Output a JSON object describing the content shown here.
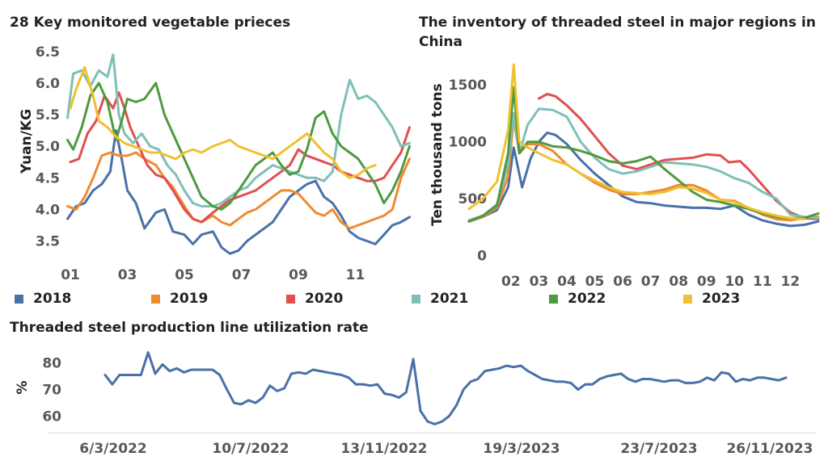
{
  "chart_data": [
    {
      "type": "line",
      "title": "28 Key monitored vegetable prieces",
      "ylabel": "Yuan/KG",
      "xlabel": "",
      "xticks": [
        "01",
        "03",
        "05",
        "07",
        "09",
        "11"
      ],
      "yticks": [
        3.5,
        4.0,
        4.5,
        5.0,
        5.5,
        6.0,
        6.5
      ],
      "ylim": [
        3.2,
        6.6
      ],
      "xlim": [
        0.8,
        13.0
      ],
      "series": [
        {
          "name": "2018",
          "color": "#4a70a8",
          "x": [
            0.9,
            1.2,
            1.5,
            1.8,
            2.1,
            2.4,
            2.6,
            2.8,
            3.0,
            3.3,
            3.6,
            4.0,
            4.3,
            4.6,
            5.0,
            5.3,
            5.6,
            6.0,
            6.3,
            6.6,
            6.9,
            7.2,
            7.5,
            7.8,
            8.1,
            8.4,
            8.7,
            9.0,
            9.3,
            9.6,
            9.9,
            10.2,
            10.5,
            10.8,
            11.1,
            11.4,
            11.7,
            12.0,
            12.3,
            12.6,
            12.9
          ],
          "y": [
            3.85,
            4.05,
            4.1,
            4.3,
            4.4,
            4.6,
            5.25,
            4.8,
            4.3,
            4.1,
            3.7,
            3.95,
            4.0,
            3.65,
            3.6,
            3.45,
            3.6,
            3.65,
            3.4,
            3.3,
            3.35,
            3.5,
            3.6,
            3.7,
            3.8,
            4.0,
            4.2,
            4.3,
            4.4,
            4.45,
            4.2,
            4.1,
            3.9,
            3.65,
            3.55,
            3.5,
            3.45,
            3.6,
            3.75,
            3.8,
            3.88
          ]
        },
        {
          "name": "2019",
          "color": "#f08a30",
          "x": [
            0.9,
            1.2,
            1.5,
            1.8,
            2.1,
            2.4,
            2.7,
            3.0,
            3.3,
            3.6,
            4.0,
            4.3,
            4.6,
            5.0,
            5.3,
            5.6,
            6.0,
            6.3,
            6.6,
            6.9,
            7.2,
            7.5,
            7.8,
            8.1,
            8.4,
            8.7,
            9.0,
            9.3,
            9.6,
            9.9,
            10.2,
            10.5,
            10.8,
            11.1,
            11.4,
            11.7,
            12.0,
            12.3,
            12.6,
            12.9
          ],
          "y": [
            4.05,
            4.0,
            4.2,
            4.5,
            4.85,
            4.9,
            4.85,
            4.85,
            4.9,
            4.8,
            4.7,
            4.5,
            4.35,
            4.05,
            3.85,
            3.8,
            3.9,
            3.8,
            3.75,
            3.85,
            3.95,
            4.0,
            4.1,
            4.2,
            4.3,
            4.3,
            4.25,
            4.1,
            3.95,
            3.9,
            4.0,
            3.8,
            3.7,
            3.75,
            3.8,
            3.85,
            3.9,
            4.0,
            4.5,
            4.8
          ]
        },
        {
          "name": "2020",
          "color": "#e05050",
          "x": [
            1.0,
            1.3,
            1.6,
            1.9,
            2.2,
            2.5,
            2.7,
            2.9,
            3.1,
            3.4,
            3.7,
            4.0,
            4.3,
            4.6,
            5.0,
            5.3,
            5.6,
            6.0,
            6.3,
            6.6,
            6.9,
            7.2,
            7.5,
            7.8,
            8.1,
            8.4,
            8.7,
            9.0,
            9.3,
            9.6,
            9.9,
            10.2,
            10.5,
            10.8,
            11.1,
            11.4,
            11.7,
            12.0,
            12.3,
            12.6,
            12.9
          ],
          "y": [
            4.75,
            4.8,
            5.2,
            5.4,
            5.8,
            5.6,
            5.85,
            5.6,
            5.3,
            5.0,
            4.7,
            4.55,
            4.5,
            4.3,
            4.0,
            3.85,
            3.8,
            3.95,
            4.05,
            4.15,
            4.2,
            4.25,
            4.3,
            4.4,
            4.5,
            4.6,
            4.7,
            4.95,
            4.85,
            4.8,
            4.75,
            4.7,
            4.6,
            4.55,
            4.5,
            4.45,
            4.45,
            4.5,
            4.7,
            4.9,
            5.3
          ]
        },
        {
          "name": "2021",
          "color": "#7fbfb8",
          "x": [
            0.9,
            1.1,
            1.4,
            1.7,
            2.0,
            2.3,
            2.5,
            2.7,
            2.9,
            3.2,
            3.5,
            3.8,
            4.1,
            4.4,
            4.7,
            5.0,
            5.3,
            5.6,
            6.0,
            6.3,
            6.6,
            6.9,
            7.2,
            7.5,
            7.8,
            8.1,
            8.4,
            8.7,
            9.0,
            9.3,
            9.6,
            9.9,
            10.2,
            10.5,
            10.8,
            11.1,
            11.4,
            11.7,
            12.0,
            12.3,
            12.6,
            12.9
          ],
          "y": [
            5.45,
            6.15,
            6.2,
            5.95,
            6.2,
            6.1,
            6.45,
            5.5,
            5.2,
            5.05,
            5.2,
            5.0,
            4.95,
            4.7,
            4.55,
            4.3,
            4.1,
            4.05,
            4.05,
            4.1,
            4.2,
            4.3,
            4.35,
            4.5,
            4.6,
            4.7,
            4.65,
            4.6,
            4.55,
            4.5,
            4.5,
            4.45,
            4.6,
            5.5,
            6.05,
            5.75,
            5.8,
            5.7,
            5.5,
            5.3,
            5.0,
            5.05
          ]
        },
        {
          "name": "2022",
          "color": "#4e9a3e",
          "x": [
            0.9,
            1.1,
            1.4,
            1.7,
            2.0,
            2.3,
            2.6,
            2.8,
            3.0,
            3.3,
            3.6,
            4.0,
            4.3,
            4.6,
            5.0,
            5.3,
            5.6,
            6.0,
            6.3,
            6.6,
            6.9,
            7.2,
            7.5,
            7.8,
            8.1,
            8.4,
            8.7,
            9.0,
            9.3,
            9.6,
            9.9,
            10.2,
            10.5,
            10.8,
            11.1,
            11.4,
            11.7,
            12.0,
            12.3,
            12.6,
            12.9
          ],
          "y": [
            5.1,
            4.95,
            5.3,
            5.8,
            6.0,
            5.7,
            5.1,
            5.4,
            5.75,
            5.7,
            5.75,
            6.0,
            5.5,
            5.2,
            4.8,
            4.5,
            4.2,
            4.05,
            4.0,
            4.1,
            4.3,
            4.5,
            4.7,
            4.8,
            4.9,
            4.7,
            4.55,
            4.6,
            4.95,
            5.45,
            5.55,
            5.2,
            5.0,
            4.9,
            4.8,
            4.6,
            4.4,
            4.1,
            4.3,
            4.6,
            5.0
          ]
        },
        {
          "name": "2023",
          "color": "#f0c030",
          "x": [
            1.0,
            1.2,
            1.5,
            1.8,
            2.0,
            2.3,
            2.6,
            2.9,
            3.2,
            3.5,
            3.8,
            4.1,
            4.4,
            4.7,
            5.0,
            5.3,
            5.6,
            6.0,
            6.3,
            6.6,
            6.9,
            7.2,
            7.5,
            7.8,
            8.1,
            8.4,
            8.7,
            9.0,
            9.3,
            9.6,
            9.9,
            10.2,
            10.5,
            10.8,
            11.1,
            11.4,
            11.7
          ],
          "y": [
            5.6,
            5.9,
            6.25,
            5.8,
            5.4,
            5.3,
            5.15,
            5.05,
            5.0,
            4.95,
            4.9,
            4.9,
            4.85,
            4.8,
            4.9,
            4.95,
            4.9,
            5.0,
            5.05,
            5.1,
            5.0,
            4.95,
            4.9,
            4.85,
            4.8,
            4.9,
            5.0,
            5.1,
            5.2,
            5.05,
            4.9,
            4.8,
            4.6,
            4.5,
            4.55,
            4.65,
            4.7
          ]
        }
      ]
    },
    {
      "type": "line",
      "title": "The inventory of threaded steel in major regions in China",
      "ylabel": "Ten thousand tons",
      "xlabel": "",
      "xticks": [
        "02",
        "03",
        "04",
        "05",
        "06",
        "07",
        "08",
        "09",
        "10",
        "11",
        "12"
      ],
      "yticks": [
        0,
        500,
        1000,
        1500
      ],
      "ylim": [
        -60,
        1750
      ],
      "xlim": [
        0.5,
        13.0
      ],
      "series": [
        {
          "name": "2018",
          "color": "#4a70a8",
          "x": [
            0.5,
            1.0,
            1.5,
            1.9,
            2.1,
            2.4,
            2.7,
            3.0,
            3.3,
            3.6,
            4.0,
            4.5,
            5.0,
            5.5,
            6.0,
            6.5,
            7.0,
            7.5,
            8.0,
            8.5,
            9.0,
            9.5,
            10.0,
            10.5,
            11.0,
            11.5,
            12.0,
            12.5,
            13.0
          ],
          "y": [
            300,
            340,
            400,
            600,
            950,
            600,
            850,
            1000,
            1080,
            1060,
            980,
            840,
            720,
            620,
            520,
            470,
            460,
            440,
            430,
            420,
            420,
            410,
            440,
            360,
            310,
            280,
            260,
            270,
            300
          ]
        },
        {
          "name": "2019",
          "color": "#f08a30",
          "x": [
            0.5,
            1.0,
            1.5,
            1.9,
            2.1,
            2.3,
            2.6,
            3.0,
            3.5,
            4.0,
            4.5,
            5.0,
            5.5,
            6.0,
            6.5,
            7.0,
            7.5,
            8.0,
            8.5,
            9.0,
            9.5,
            10.0,
            10.5,
            11.0,
            11.5,
            12.0,
            12.5,
            13.0
          ],
          "y": [
            300,
            340,
            420,
            700,
            1200,
            900,
            980,
            980,
            920,
            800,
            720,
            640,
            580,
            540,
            540,
            560,
            580,
            620,
            620,
            570,
            490,
            480,
            420,
            360,
            320,
            310,
            330,
            340
          ]
        },
        {
          "name": "2020",
          "color": "#e05050",
          "x": [
            3.0,
            3.3,
            3.6,
            4.0,
            4.5,
            5.0,
            5.5,
            6.0,
            6.5,
            7.0,
            7.5,
            8.0,
            8.5,
            9.0,
            9.5,
            9.8,
            10.2,
            10.5,
            11.0,
            11.5,
            12.0,
            12.5,
            13.0
          ],
          "y": [
            1380,
            1420,
            1400,
            1320,
            1200,
            1050,
            900,
            790,
            760,
            800,
            840,
            850,
            860,
            890,
            880,
            820,
            830,
            760,
            620,
            480,
            380,
            330,
            320
          ]
        },
        {
          "name": "2021",
          "color": "#7fbfb8",
          "x": [
            0.5,
            1.0,
            1.5,
            1.9,
            2.1,
            2.3,
            2.6,
            3.0,
            3.5,
            4.0,
            4.5,
            5.0,
            5.5,
            6.0,
            6.5,
            7.0,
            7.5,
            8.0,
            8.5,
            9.0,
            9.5,
            10.0,
            10.5,
            11.0,
            11.5,
            12.0,
            12.5,
            13.0
          ],
          "y": [
            310,
            350,
            450,
            800,
            1250,
            900,
            1150,
            1290,
            1280,
            1220,
            1000,
            860,
            760,
            720,
            740,
            780,
            820,
            810,
            800,
            780,
            740,
            680,
            640,
            560,
            500,
            360,
            340,
            330
          ]
        },
        {
          "name": "2022",
          "color": "#4e9a3e",
          "x": [
            0.5,
            1.0,
            1.5,
            1.9,
            2.1,
            2.3,
            2.6,
            3.0,
            3.5,
            4.0,
            4.5,
            5.0,
            5.5,
            6.0,
            6.5,
            7.0,
            7.5,
            8.0,
            8.5,
            9.0,
            9.5,
            10.0,
            10.5,
            11.0,
            11.5,
            12.0,
            12.5,
            13.0
          ],
          "y": [
            300,
            350,
            440,
            900,
            1480,
            900,
            1000,
            1000,
            960,
            950,
            920,
            880,
            830,
            810,
            830,
            870,
            760,
            660,
            560,
            490,
            470,
            440,
            410,
            370,
            340,
            330,
            330,
            370
          ]
        },
        {
          "name": "2023",
          "color": "#f0c030",
          "x": [
            0.5,
            1.0,
            1.5,
            1.9,
            2.1,
            2.3,
            2.6,
            3.0,
            3.5,
            4.0,
            4.5,
            5.0,
            5.5,
            6.0,
            6.5,
            7.0,
            7.5,
            8.0,
            8.5,
            9.0,
            9.5,
            10.0,
            10.5,
            11.0,
            11.5,
            12.0,
            12.5
          ],
          "y": [
            410,
            500,
            650,
            1100,
            1680,
            1000,
            950,
            900,
            840,
            800,
            720,
            660,
            600,
            560,
            550,
            540,
            560,
            600,
            590,
            550,
            490,
            470,
            420,
            380,
            350,
            330,
            320
          ]
        }
      ]
    },
    {
      "type": "line",
      "title": "Threaded steel production line utilization rate",
      "ylabel": "%",
      "xlabel": "",
      "xticks": [
        "6/3/2022",
        "10/7/2022",
        "13/11/2022",
        "19/3/2023",
        "23/7/2023",
        "26/11/2023"
      ],
      "yticks": [
        60,
        70,
        80
      ],
      "ylim": [
        55,
        86
      ],
      "x": [
        0,
        2,
        4,
        6,
        8,
        10,
        12,
        14,
        16,
        18,
        20,
        22,
        24,
        26,
        28,
        30,
        32,
        34,
        36,
        38,
        40,
        42,
        44,
        46,
        48,
        50,
        52,
        54,
        56,
        58,
        60,
        62,
        64,
        66,
        68,
        70,
        72,
        74,
        76,
        78,
        80,
        82,
        84,
        86,
        88,
        90,
        92,
        94,
        96,
        98,
        100,
        102,
        104,
        106,
        108,
        110,
        112,
        114,
        116,
        118,
        120,
        122,
        124,
        126,
        128,
        130,
        132,
        134,
        136,
        138,
        140,
        142,
        144,
        146,
        148,
        150,
        152,
        154,
        156,
        158,
        160,
        162,
        164,
        166,
        168,
        170,
        172,
        174,
        176,
        178,
        180,
        182,
        184,
        186,
        188,
        190
      ],
      "y": [
        75.5,
        72,
        75.5,
        75.5,
        75.5,
        75.5,
        84,
        76,
        79.5,
        77,
        78,
        76.5,
        77.5,
        77.5,
        77.5,
        77.5,
        75.5,
        70,
        65,
        64.5,
        66,
        65,
        67,
        71.5,
        69.5,
        70.5,
        76,
        76.5,
        76,
        77.5,
        77,
        76.5,
        76,
        75.5,
        74.5,
        72,
        72,
        71.5,
        72,
        68.5,
        68,
        67,
        69,
        81.5,
        62,
        58,
        57,
        58,
        60,
        64,
        70,
        73,
        74,
        77,
        77.5,
        78,
        79,
        78.5,
        79,
        77,
        75.5,
        74,
        73.5,
        73,
        73,
        72.5,
        70,
        72,
        72,
        74,
        75,
        75.5,
        76,
        74,
        73,
        74,
        74,
        73.5,
        73,
        73.5,
        73.5,
        72.5,
        72.5,
        73,
        74.5,
        73.5,
        76.5,
        76,
        73,
        74,
        73.5,
        74.5,
        74.5,
        74,
        73.5,
        74.5
      ]
    }
  ],
  "legend": [
    {
      "label": "2018",
      "color": "#4a70a8"
    },
    {
      "label": "2019",
      "color": "#f08a30"
    },
    {
      "label": "2020",
      "color": "#e05050"
    },
    {
      "label": "2021",
      "color": "#7fbfb8"
    },
    {
      "label": "2022",
      "color": "#4e9a3e"
    },
    {
      "label": "2023",
      "color": "#f0c030"
    }
  ],
  "bottom_line_color": "#4a70a8",
  "tick_color": "#595959"
}
